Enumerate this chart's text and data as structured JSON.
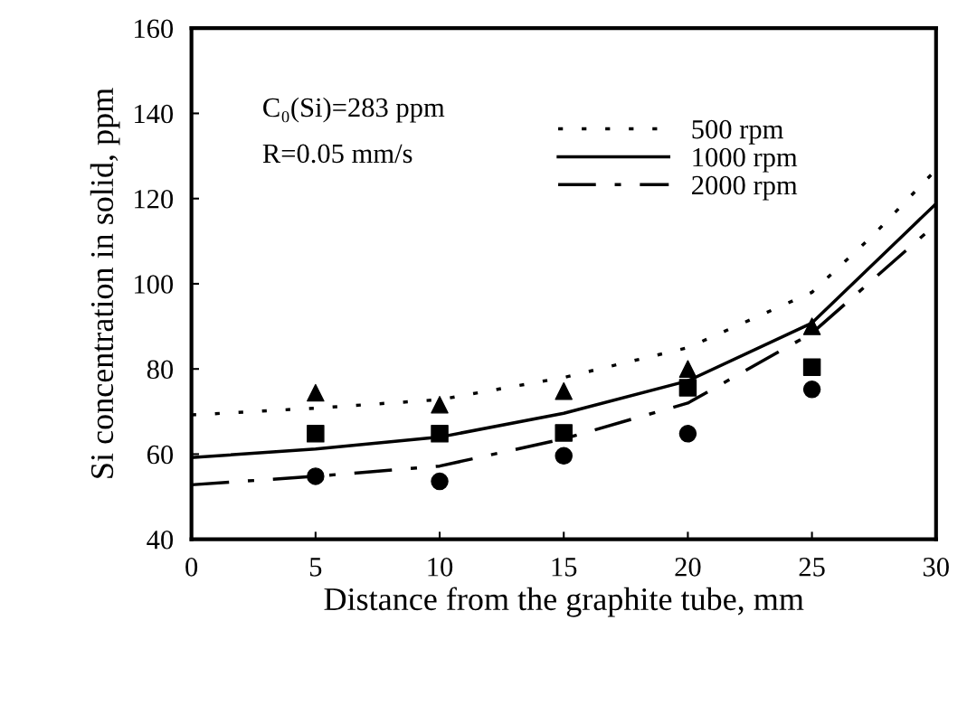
{
  "chart_data": {
    "type": "line",
    "xlabel": "Distance from the graphite tube, mm",
    "ylabel": "Si concentration in solid, ppm",
    "xlim": [
      0,
      30
    ],
    "xticks": [
      0,
      5,
      10,
      15,
      20,
      25,
      30
    ],
    "ylim": [
      40,
      160
    ],
    "yticks": [
      40,
      60,
      80,
      100,
      120,
      140,
      160
    ],
    "grid": false,
    "legend": "top right",
    "annotations": [
      "C₀(Si)=283 ppm",
      "R=0.05 mm/s"
    ],
    "series": [
      {
        "name": "500 rpm",
        "line_style": "dotted",
        "color": "#000000",
        "x": [
          0,
          5,
          10,
          15,
          20,
          25,
          27.5,
          30
        ],
        "values": [
          69.2,
          70.8,
          72.8,
          78,
          85,
          98,
          111.6,
          126.8
        ]
      },
      {
        "name": "1000 rpm",
        "line_style": "solid",
        "color": "#000000",
        "x": [
          0,
          5,
          10,
          15,
          20,
          25,
          30
        ],
        "values": [
          59.2,
          61.2,
          64,
          69.6,
          77.2,
          90.8,
          118.8
        ]
      },
      {
        "name": "2000 rpm",
        "line_style": "dashdot",
        "color": "#000000",
        "x": [
          0,
          5,
          10,
          15,
          20,
          25,
          30
        ],
        "values": [
          52.8,
          54.8,
          57.2,
          63.6,
          72,
          88.4,
          114
        ]
      },
      {
        "type": "scatter",
        "marker": "triangle",
        "color": "#000000",
        "x": [
          5,
          10,
          15,
          20,
          25
        ],
        "values": [
          74.4,
          71.6,
          74.8,
          80,
          90
        ]
      },
      {
        "type": "scatter",
        "marker": "square",
        "color": "#000000",
        "x": [
          5,
          10,
          15,
          20,
          25
        ],
        "values": [
          64.8,
          64.8,
          65,
          75.6,
          80.4
        ]
      },
      {
        "type": "scatter",
        "marker": "circle",
        "color": "#000000",
        "x": [
          5,
          10,
          15,
          20,
          25
        ],
        "values": [
          54.8,
          53.6,
          59.6,
          64.8,
          75.2
        ]
      }
    ]
  }
}
